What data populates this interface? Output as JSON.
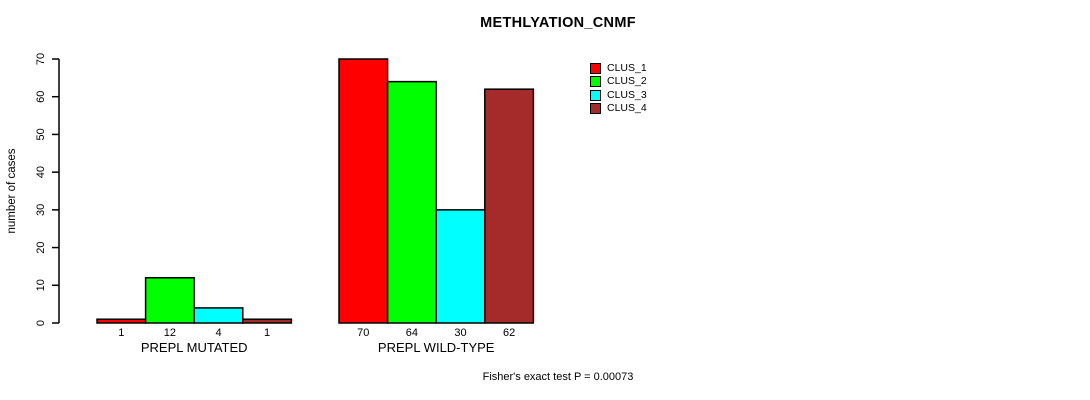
{
  "chart_data": {
    "type": "bar",
    "title": "METHLYATION_CNMF",
    "ylabel": "number of cases",
    "xlabel": "",
    "ylim": [
      0,
      70
    ],
    "yticks": [
      0,
      10,
      20,
      30,
      40,
      50,
      60,
      70
    ],
    "categories": [
      "PREPL MUTATED",
      "PREPL WILD-TYPE"
    ],
    "series": [
      {
        "name": "CLUS_1",
        "color": "#FF0000",
        "values": [
          1,
          70
        ]
      },
      {
        "name": "CLUS_2",
        "color": "#00FF00",
        "values": [
          12,
          64
        ]
      },
      {
        "name": "CLUS_3",
        "color": "#00FFFF",
        "values": [
          4,
          30
        ]
      },
      {
        "name": "CLUS_4",
        "color": "#A52A2A",
        "values": [
          1,
          62
        ]
      }
    ],
    "bar_value_labels": [
      [
        "1",
        "12",
        "4",
        "1"
      ],
      [
        "70",
        "64",
        "30",
        "62"
      ]
    ],
    "legend_position": "top-right",
    "grid": false,
    "axis_color": "#000000",
    "bar_border_color": "#000000",
    "annotation": "Fisher's exact test P = 0.00073"
  }
}
